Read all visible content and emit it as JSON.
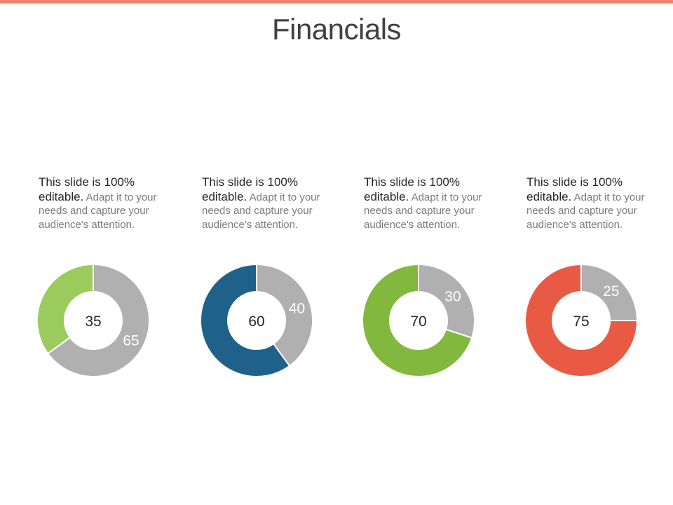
{
  "colors": {
    "top_bar": "#ee8271",
    "grey": "#b0b0b0",
    "white": "#ffffff"
  },
  "title": "Financials",
  "panels": [
    {
      "bold": "This slide is 100% editable.",
      "rest": "Adapt it to your needs and capture your audience's  attention."
    },
    {
      "bold": "This slide is 100% editable.",
      "rest": "Adapt it to your needs and capture your audience's attention."
    },
    {
      "bold": "This slide is 100% editable.",
      "rest": "Adapt it to your needs and capture your audience's  attention."
    },
    {
      "bold": "This slide is 100% editable.",
      "rest": "Adapt it to your needs and capture your audience's attention."
    }
  ],
  "chart_data": [
    {
      "type": "pie",
      "donut": true,
      "slices": [
        {
          "value": 35,
          "label": "35",
          "color": "#9acb5c"
        },
        {
          "value": 65,
          "label": "65",
          "color": "#b0b0b0"
        }
      ]
    },
    {
      "type": "pie",
      "donut": true,
      "slices": [
        {
          "value": 60,
          "label": "60",
          "color": "#1f6189"
        },
        {
          "value": 40,
          "label": "40",
          "color": "#b0b0b0"
        }
      ]
    },
    {
      "type": "pie",
      "donut": true,
      "slices": [
        {
          "value": 70,
          "label": "70",
          "color": "#82b83d"
        },
        {
          "value": 30,
          "label": "30",
          "color": "#b0b0b0"
        }
      ]
    },
    {
      "type": "pie",
      "donut": true,
      "slices": [
        {
          "value": 75,
          "label": "75",
          "color": "#e95a45"
        },
        {
          "value": 25,
          "label": "25",
          "color": "#b0b0b0"
        }
      ]
    }
  ]
}
